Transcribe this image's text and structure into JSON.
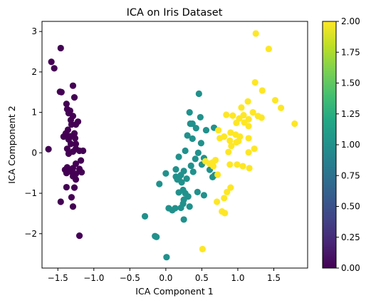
{
  "chart_data": {
    "type": "scatter",
    "title": "ICA on Iris Dataset",
    "xlabel": "ICA Component 1",
    "ylabel": "ICA Component 2",
    "xlim": [
      -1.72,
      1.97
    ],
    "ylim": [
      -2.85,
      3.25
    ],
    "xticks": [
      -1.5,
      -1.0,
      -0.5,
      0.0,
      0.5,
      1.0,
      1.5
    ],
    "xtick_labels": [
      "−1.5",
      "−1.0",
      "−0.5",
      "0.0",
      "0.5",
      "1.0",
      "1.5"
    ],
    "yticks": [
      -2,
      -1,
      0,
      1,
      2,
      3
    ],
    "ytick_labels": [
      "−2",
      "−1",
      "0",
      "1",
      "2",
      "3"
    ],
    "grid": false,
    "colormap": "viridis",
    "colorbar": {
      "range": [
        0.0,
        2.0
      ],
      "ticks": [
        0.0,
        0.25,
        0.5,
        0.75,
        1.0,
        1.25,
        1.5,
        1.75,
        2.0
      ],
      "tick_labels": [
        "0.00",
        "0.25",
        "0.50",
        "0.75",
        "1.00",
        "1.25",
        "1.50",
        "1.75",
        "2.00"
      ]
    },
    "series": [
      {
        "value": 0,
        "color": "#440154",
        "points": [
          [
            -1.46,
            2.59
          ],
          [
            -1.59,
            2.25
          ],
          [
            -1.55,
            2.09
          ],
          [
            -1.47,
            1.51
          ],
          [
            -1.45,
            1.5
          ],
          [
            -1.29,
            1.66
          ],
          [
            -1.27,
            1.37
          ],
          [
            -1.38,
            1.21
          ],
          [
            -1.37,
            1.08
          ],
          [
            -1.33,
            1.04
          ],
          [
            -1.35,
            0.98
          ],
          [
            -1.29,
            0.91
          ],
          [
            -1.32,
            0.81
          ],
          [
            -1.22,
            0.77
          ],
          [
            -1.31,
            0.7
          ],
          [
            -1.25,
            0.7
          ],
          [
            -1.36,
            0.57
          ],
          [
            -1.39,
            0.48
          ],
          [
            -1.27,
            0.48
          ],
          [
            -1.42,
            0.4
          ],
          [
            -1.33,
            0.41
          ],
          [
            -1.35,
            0.33
          ],
          [
            -1.26,
            0.36
          ],
          [
            -1.32,
            0.22
          ],
          [
            -1.25,
            0.22
          ],
          [
            -1.25,
            0.1
          ],
          [
            -1.37,
            0.1
          ],
          [
            -1.29,
            0.03
          ],
          [
            -1.2,
            0.05
          ],
          [
            -1.15,
            0.05
          ],
          [
            -1.63,
            0.09
          ],
          [
            -1.35,
            -0.02
          ],
          [
            -1.18,
            -0.19
          ],
          [
            -1.25,
            -0.27
          ],
          [
            -1.37,
            -0.36
          ],
          [
            -1.29,
            -0.38
          ],
          [
            -1.32,
            -0.46
          ],
          [
            -1.2,
            -0.4
          ],
          [
            -1.25,
            -0.52
          ],
          [
            -1.38,
            -0.5
          ],
          [
            -1.17,
            -0.48
          ],
          [
            -1.29,
            -0.58
          ],
          [
            -1.25,
            -0.66
          ],
          [
            -1.38,
            -0.85
          ],
          [
            -1.27,
            -0.86
          ],
          [
            -1.31,
            -1.1
          ],
          [
            -1.46,
            -1.21
          ],
          [
            -1.29,
            -1.33
          ],
          [
            -1.2,
            -2.05
          ],
          [
            -1.4,
            -0.42
          ]
        ]
      },
      {
        "value": 1,
        "color": "#21918c",
        "points": [
          [
            0.46,
            1.46
          ],
          [
            0.33,
            1.0
          ],
          [
            0.48,
            0.88
          ],
          [
            0.37,
            0.72
          ],
          [
            0.34,
            0.72
          ],
          [
            0.42,
            0.61
          ],
          [
            0.56,
            0.56
          ],
          [
            0.67,
            0.62
          ],
          [
            0.3,
            0.43
          ],
          [
            0.37,
            0.35
          ],
          [
            0.49,
            0.24
          ],
          [
            0.27,
            0.05
          ],
          [
            0.45,
            0.0
          ],
          [
            0.18,
            -0.1
          ],
          [
            0.41,
            -0.15
          ],
          [
            0.53,
            -0.13
          ],
          [
            0.5,
            -0.29
          ],
          [
            0.35,
            -0.32
          ],
          [
            0.38,
            -0.47
          ],
          [
            0.61,
            -0.42
          ],
          [
            0.65,
            -0.6
          ],
          [
            0.68,
            -0.55
          ],
          [
            0.14,
            -0.41
          ],
          [
            0.25,
            -0.45
          ],
          [
            0.21,
            -0.55
          ],
          [
            0.18,
            -0.63
          ],
          [
            0.29,
            -0.64
          ],
          [
            0.14,
            -0.59
          ],
          [
            0.0,
            -0.51
          ],
          [
            -0.09,
            -0.77
          ],
          [
            0.22,
            -0.73
          ],
          [
            0.24,
            -0.92
          ],
          [
            0.18,
            -0.98
          ],
          [
            0.27,
            -1.0
          ],
          [
            0.31,
            -1.08
          ],
          [
            0.25,
            -1.16
          ],
          [
            0.44,
            -0.97
          ],
          [
            0.53,
            -1.05
          ],
          [
            0.24,
            -1.26
          ],
          [
            0.33,
            -1.33
          ],
          [
            0.04,
            -1.37
          ],
          [
            0.09,
            -1.42
          ],
          [
            0.13,
            -1.37
          ],
          [
            0.21,
            -1.36
          ],
          [
            0.25,
            -1.65
          ],
          [
            -0.29,
            -1.57
          ],
          [
            -0.15,
            -2.06
          ],
          [
            -0.13,
            -2.08
          ],
          [
            0.01,
            -2.58
          ],
          [
            0.16,
            -0.66
          ]
        ]
      },
      {
        "value": 2,
        "color": "#fde725",
        "points": [
          [
            1.25,
            2.95
          ],
          [
            1.43,
            2.57
          ],
          [
            1.24,
            1.74
          ],
          [
            1.34,
            1.54
          ],
          [
            1.52,
            1.3
          ],
          [
            1.6,
            1.11
          ],
          [
            1.79,
            0.72
          ],
          [
            1.14,
            1.27
          ],
          [
            1.05,
            1.12
          ],
          [
            0.84,
            0.94
          ],
          [
            0.93,
            0.92
          ],
          [
            1.02,
            0.85
          ],
          [
            1.08,
            0.93
          ],
          [
            1.15,
            0.83
          ],
          [
            1.09,
            0.75
          ],
          [
            0.98,
            0.74
          ],
          [
            1.21,
            1.0
          ],
          [
            1.28,
            0.91
          ],
          [
            1.33,
            0.87
          ],
          [
            1.15,
            0.66
          ],
          [
            0.9,
            0.5
          ],
          [
            0.73,
            0.56
          ],
          [
            0.81,
            0.4
          ],
          [
            0.97,
            0.45
          ],
          [
            1.03,
            0.4
          ],
          [
            0.89,
            0.3
          ],
          [
            0.75,
            0.36
          ],
          [
            1.15,
            0.36
          ],
          [
            1.23,
            0.1
          ],
          [
            1.15,
            0.01
          ],
          [
            0.98,
            0.26
          ],
          [
            0.91,
            0.17
          ],
          [
            1.01,
            0.29
          ],
          [
            0.87,
            0.02
          ],
          [
            0.69,
            -0.18
          ],
          [
            0.65,
            -0.24
          ],
          [
            0.66,
            -0.33
          ],
          [
            0.61,
            -0.27
          ],
          [
            0.55,
            -0.21
          ],
          [
            0.89,
            -0.29
          ],
          [
            0.99,
            -0.29
          ],
          [
            1.07,
            -0.33
          ],
          [
            1.16,
            -0.38
          ],
          [
            0.72,
            -0.54
          ],
          [
            0.9,
            -0.86
          ],
          [
            0.85,
            -0.97
          ],
          [
            0.81,
            -1.12
          ],
          [
            0.71,
            -1.21
          ],
          [
            0.78,
            -1.45
          ],
          [
            0.82,
            -1.49
          ],
          [
            0.51,
            -2.38
          ]
        ]
      }
    ]
  }
}
